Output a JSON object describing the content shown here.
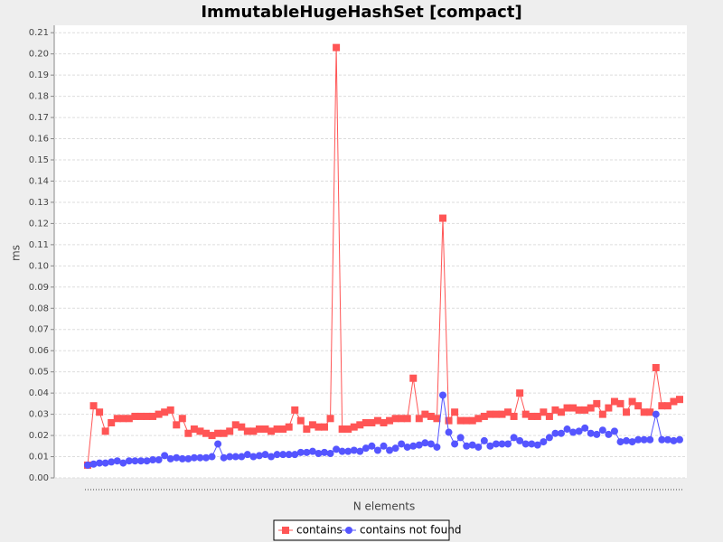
{
  "chart_data": {
    "type": "line",
    "title": "ImmutableHugeHashSet [compact]",
    "x_label": "N elements",
    "y_label": "ms",
    "categories": [
      null,
      null,
      null,
      null,
      null,
      null,
      null,
      null,
      null,
      null,
      null,
      null,
      null,
      null,
      null,
      null,
      null,
      null,
      null,
      null,
      null,
      null,
      null,
      null,
      null,
      null,
      null,
      null,
      null,
      null,
      null,
      null,
      null,
      null,
      null,
      null,
      null,
      null,
      null,
      null,
      null,
      null,
      null,
      null,
      null,
      null,
      null,
      null,
      null,
      null,
      null,
      null,
      null,
      null,
      null,
      null,
      null,
      null,
      null,
      null,
      null,
      null,
      null,
      null,
      null,
      null,
      null,
      null,
      null,
      null,
      null,
      null,
      null,
      null,
      null,
      null,
      null,
      null,
      null,
      null,
      null,
      null,
      null,
      null,
      null,
      null,
      null,
      null,
      null,
      null,
      null,
      null,
      null,
      null,
      null,
      null,
      null,
      null,
      null,
      null,
      null
    ],
    "series": [
      {
        "name": "contains",
        "color": "#ff5555",
        "marker": "square",
        "values": [
          0.006,
          0.034,
          0.031,
          0.022,
          0.026,
          0.028,
          0.028,
          0.028,
          0.029,
          0.029,
          0.029,
          0.029,
          0.03,
          0.031,
          0.032,
          0.025,
          0.028,
          0.021,
          0.023,
          0.022,
          0.021,
          0.02,
          0.021,
          0.021,
          0.022,
          0.025,
          0.024,
          0.022,
          0.022,
          0.023,
          0.023,
          0.022,
          0.023,
          0.023,
          0.024,
          0.032,
          0.027,
          0.023,
          0.025,
          0.024,
          0.024,
          0.028,
          0.203,
          0.023,
          0.023,
          0.024,
          0.025,
          0.026,
          0.026,
          0.027,
          0.026,
          0.027,
          0.028,
          0.028,
          0.028,
          0.047,
          0.028,
          0.03,
          0.029,
          0.028,
          0.1225,
          0.027,
          0.031,
          0.027,
          0.027,
          0.027,
          0.028,
          0.029,
          0.03,
          0.03,
          0.03,
          0.031,
          0.029,
          0.04,
          0.03,
          0.029,
          0.029,
          0.031,
          0.029,
          0.032,
          0.031,
          0.033,
          0.033,
          0.032,
          0.032,
          0.033,
          0.035,
          0.03,
          0.033,
          0.036,
          0.035,
          0.031,
          0.036,
          0.034,
          0.031,
          0.031,
          0.052,
          0.034,
          0.034,
          0.036,
          0.037
        ]
      },
      {
        "name": "contains not found",
        "color": "#5555ff",
        "marker": "circle",
        "values": [
          0.006,
          0.0065,
          0.007,
          0.007,
          0.0075,
          0.008,
          0.007,
          0.008,
          0.008,
          0.008,
          0.008,
          0.0085,
          0.0085,
          0.0105,
          0.009,
          0.0095,
          0.009,
          0.009,
          0.0095,
          0.0095,
          0.0095,
          0.01,
          0.016,
          0.0095,
          0.01,
          0.01,
          0.01,
          0.011,
          0.01,
          0.0105,
          0.011,
          0.01,
          0.011,
          0.011,
          0.011,
          0.011,
          0.012,
          0.012,
          0.0125,
          0.0115,
          0.012,
          0.0115,
          0.0135,
          0.0125,
          0.0125,
          0.013,
          0.0125,
          0.014,
          0.015,
          0.013,
          0.015,
          0.013,
          0.014,
          0.016,
          0.0145,
          0.015,
          0.0155,
          0.0165,
          0.016,
          0.0145,
          0.039,
          0.0215,
          0.016,
          0.019,
          0.015,
          0.0155,
          0.0145,
          0.0175,
          0.015,
          0.016,
          0.016,
          0.016,
          0.019,
          0.0175,
          0.016,
          0.016,
          0.0155,
          0.017,
          0.019,
          0.021,
          0.021,
          0.023,
          0.0215,
          0.022,
          0.0235,
          0.021,
          0.0205,
          0.0225,
          0.0205,
          0.022,
          0.017,
          0.0175,
          0.017,
          0.018,
          0.018,
          0.018,
          0.03,
          0.018,
          0.018,
          0.0175,
          0.018
        ]
      }
    ],
    "ylim": [
      0,
      0.2135
    ],
    "yticks": [
      {
        "value": 0,
        "label": "0.00"
      },
      0.01,
      0.02,
      0.03,
      0.04,
      0.05,
      0.06,
      0.07,
      0.08,
      0.09,
      {
        "value": 0.1,
        "label": "0.10"
      },
      0.11,
      0.12,
      0.13,
      0.14,
      0.15,
      0.16,
      0.17,
      0.18,
      0.19,
      {
        "value": 0.2,
        "label": "0.20"
      },
      0.21
    ],
    "grid": true,
    "legend": "bottom"
  }
}
